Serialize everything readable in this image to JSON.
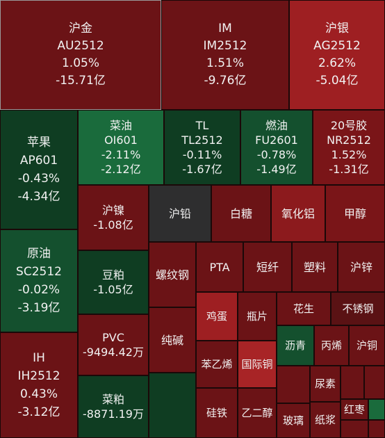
{
  "tiles": [
    {
      "id": "au",
      "lines": [
        "沪金",
        "AU2512",
        "1.05%",
        "-15.71亿"
      ]
    },
    {
      "id": "im",
      "lines": [
        "IM",
        "IM2512",
        "1.51%",
        "-9.76亿"
      ]
    },
    {
      "id": "ag",
      "lines": [
        "沪银",
        "AG2512",
        "2.62%",
        "-5.04亿"
      ]
    },
    {
      "id": "ap",
      "lines": [
        "苹果",
        "AP601",
        "-0.43%",
        "-4.34亿"
      ]
    },
    {
      "id": "oi",
      "lines": [
        "菜油",
        "OI601",
        "-2.11%",
        "-2.12亿"
      ]
    },
    {
      "id": "tl",
      "lines": [
        "TL",
        "TL2512",
        "-0.11%",
        "-1.67亿"
      ]
    },
    {
      "id": "fu",
      "lines": [
        "燃油",
        "FU2601",
        "-0.78%",
        "-1.49亿"
      ]
    },
    {
      "id": "nr",
      "lines": [
        "20号胶",
        "NR2512",
        "1.52%",
        "-1.31亿"
      ]
    },
    {
      "id": "sc",
      "lines": [
        "原油",
        "SC2512",
        "-0.02%",
        "-3.19亿"
      ]
    },
    {
      "id": "ih",
      "lines": [
        "IH",
        "IH2512",
        "0.43%",
        "-3.12亿"
      ]
    },
    {
      "id": "ni",
      "lines": [
        "沪镍",
        "-1.08亿"
      ]
    },
    {
      "id": "m",
      "lines": [
        "豆粕",
        "-1.05亿"
      ]
    },
    {
      "id": "pvc",
      "lines": [
        "PVC",
        "-9494.42万"
      ]
    },
    {
      "id": "rm",
      "lines": [
        "菜粕",
        "-8871.19万"
      ]
    },
    {
      "id": "pb",
      "lines": [
        "沪铅"
      ]
    },
    {
      "id": "sr",
      "lines": [
        "白糖"
      ]
    },
    {
      "id": "al2o3",
      "lines": [
        "氧化铝"
      ]
    },
    {
      "id": "ma",
      "lines": [
        "甲醇"
      ]
    },
    {
      "id": "rb",
      "lines": [
        "螺纹钢"
      ]
    },
    {
      "id": "pta",
      "lines": [
        "PTA"
      ]
    },
    {
      "id": "sf",
      "lines": [
        "短纤"
      ]
    },
    {
      "id": "l",
      "lines": [
        "塑料"
      ]
    },
    {
      "id": "zn",
      "lines": [
        "沪锌"
      ]
    },
    {
      "id": "jd",
      "lines": [
        "鸡蛋"
      ]
    },
    {
      "id": "pf",
      "lines": [
        "瓶片"
      ]
    },
    {
      "id": "pk",
      "lines": [
        "花生"
      ]
    },
    {
      "id": "ss",
      "lines": [
        "不锈钢"
      ]
    },
    {
      "id": "sa",
      "lines": [
        "纯碱"
      ]
    },
    {
      "id": "bu",
      "lines": [
        "沥青"
      ]
    },
    {
      "id": "pp",
      "lines": [
        "丙烯"
      ]
    },
    {
      "id": "cu",
      "lines": [
        "沪铜"
      ]
    },
    {
      "id": "eb",
      "lines": [
        "苯乙烯"
      ]
    },
    {
      "id": "bc",
      "lines": [
        "国际铜"
      ]
    },
    {
      "id": "ur",
      "lines": [
        "尿素"
      ]
    },
    {
      "id": "si",
      "lines": [
        "硅铁"
      ]
    },
    {
      "id": "eg",
      "lines": [
        "乙二醇"
      ]
    },
    {
      "id": "fg",
      "lines": [
        "玻璃"
      ]
    },
    {
      "id": "sp",
      "lines": [
        "纸浆"
      ]
    },
    {
      "id": "cj",
      "lines": [
        "红枣"
      ]
    },
    {
      "id": "blank1",
      "lines": []
    },
    {
      "id": "blank2",
      "lines": []
    },
    {
      "id": "blank3",
      "lines": []
    },
    {
      "id": "blank4",
      "lines": []
    },
    {
      "id": "blank5",
      "lines": []
    },
    {
      "id": "blank6",
      "lines": []
    }
  ]
}
